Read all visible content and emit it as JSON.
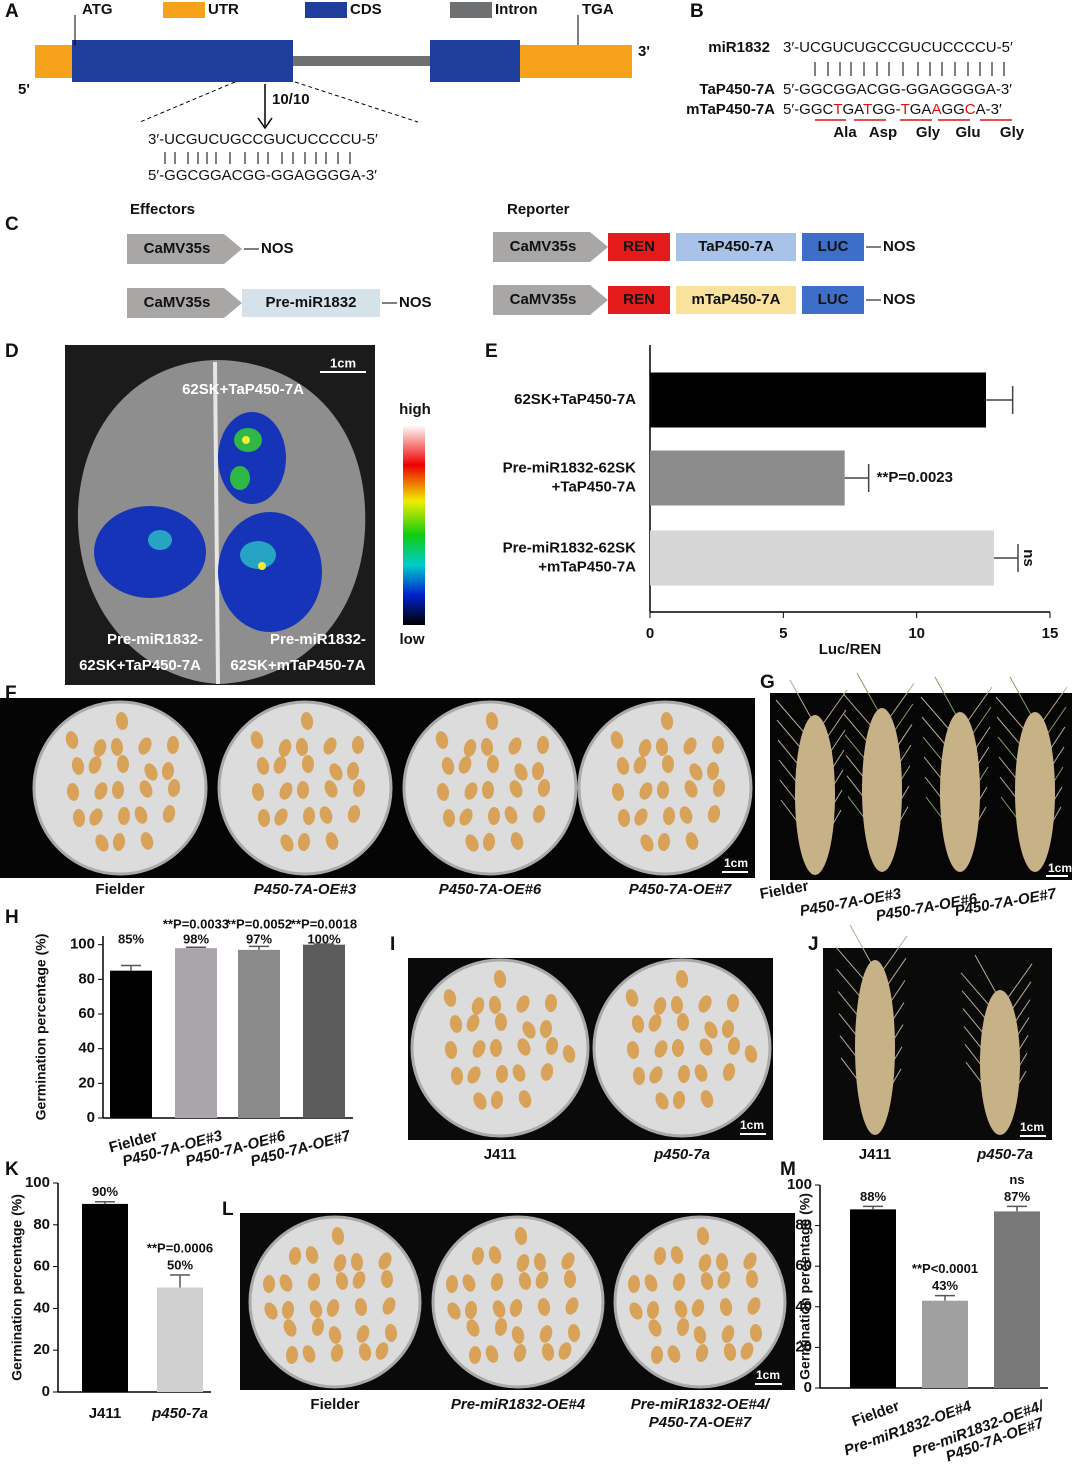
{
  "panel_labels": [
    "A",
    "B",
    "C",
    "D",
    "E",
    "F",
    "G",
    "H",
    "I",
    "J",
    "K",
    "L",
    "M"
  ],
  "gene_structure": {
    "legend": [
      "UTR",
      "CDS",
      "Intron"
    ],
    "start": "ATG",
    "stop": "TGA",
    "end5": "5'",
    "end3": "3'",
    "cleavage": "10/10",
    "mirna_seq": "3′-UCGUCUGCCGUCUCCCCU-5′",
    "target_seq": "5′-GGCGGACGG-GGAGGGGA-3′"
  },
  "alignment": {
    "names": [
      "miR1832",
      "TaP450-7A",
      "mTaP450-7A"
    ],
    "mirna_seq": "3′-UCGUCUGCCGUCUCCCCU-5′",
    "target_seq": "5′-GGCGGACGG-GGAGGGGA-3′",
    "mutant_segments": [
      "5′-GGC",
      "T",
      "GA",
      "T",
      "GG-",
      "T",
      "GA",
      "A",
      "GG",
      "C",
      "A-3′"
    ],
    "amino_acids": [
      "Ala",
      "Asp",
      "Gly",
      "Glu",
      "Gly"
    ]
  },
  "constructs": {
    "effectors_title": "Effectors",
    "reporter_title": "Reporter",
    "effectors": [
      [
        "CaMV35s",
        "NOS"
      ],
      [
        "CaMV35s",
        "Pre-miR1832",
        "NOS"
      ]
    ],
    "reporters": [
      [
        "CaMV35s",
        "REN",
        "TaP450-7A",
        "LUC",
        "NOS"
      ],
      [
        "CaMV35s",
        "REN",
        "mTaP450-7A",
        "LUC",
        "NOS"
      ]
    ]
  },
  "leaf_image": {
    "scale": "1cm",
    "labels": [
      [
        "62SK+TaP450-7A"
      ],
      [
        "Pre-miR1832-",
        "62SK+TaP450-7A"
      ],
      [
        "Pre-miR1832-",
        "62SK+mTaP450-7A"
      ]
    ],
    "colorbar": [
      "high",
      "low"
    ]
  },
  "plates_f": {
    "scale": "1cm",
    "labels": [
      "Fielder",
      "P450-7A-OE#3",
      "P450-7A-OE#6",
      "P450-7A-OE#7"
    ]
  },
  "spikes_g": {
    "scale": "1cm",
    "labels": [
      "Fielder",
      "P450-7A-OE#3",
      "P450-7A-OE#6",
      "P450-7A-OE#7"
    ]
  },
  "plates_i": {
    "scale": "1cm",
    "labels": [
      "J411",
      "p450-7a"
    ]
  },
  "spikes_j": {
    "scale": "1cm",
    "labels": [
      "J411",
      "p450-7a"
    ]
  },
  "plates_l": {
    "scale": "1cm",
    "labels": [
      [
        "Fielder"
      ],
      [
        "Pre-miR1832-OE#4"
      ],
      [
        "Pre-miR1832-OE#4/",
        "P450-7A-OE#7"
      ]
    ]
  },
  "chart_data": [
    {
      "type": "bar",
      "orientation": "horizontal",
      "categories": [
        [
          "62SK+TaP450-7A"
        ],
        [
          "Pre-miR1832-62SK",
          "+TaP450-7A"
        ],
        [
          "Pre-miR1832-62SK",
          "+mTaP450-7A"
        ]
      ],
      "values": [
        12.6,
        7.3,
        12.9
      ],
      "errors": [
        1.0,
        0.9,
        0.9
      ],
      "colors": [
        "#000000",
        "#8c8c8c",
        "#d6d6d6"
      ],
      "annotations": [
        null,
        "**P=0.0023",
        "ns"
      ],
      "xlabel": "Luc/REN",
      "xlim": [
        0,
        15
      ],
      "xticks": [
        0,
        5,
        10,
        15
      ]
    },
    {
      "type": "bar",
      "orientation": "vertical",
      "categories": [
        [
          "Fielder"
        ],
        [
          "P450-7A-OE#3"
        ],
        [
          "P450-7A-OE#6"
        ],
        [
          "P450-7A-OE#7"
        ]
      ],
      "values": [
        85,
        98,
        97,
        100
      ],
      "value_labels": [
        "85%",
        "98%",
        "97%",
        "100%"
      ],
      "errors": [
        3,
        0.5,
        2,
        0.3
      ],
      "colors": [
        "#000000",
        "#aaa5aa",
        "#8a8a8a",
        "#5c5c5c"
      ],
      "annotations": [
        null,
        "**P=0.0033",
        "**P=0.0052",
        "**P=0.0018"
      ],
      "ylabel": "Germination percentage (%)",
      "ylim": [
        0,
        105
      ],
      "yticks": [
        0,
        20,
        40,
        60,
        80,
        100
      ]
    },
    {
      "type": "bar",
      "orientation": "vertical",
      "categories": [
        [
          "J411"
        ],
        [
          "p450-7a"
        ]
      ],
      "values": [
        90,
        50
      ],
      "value_labels": [
        "90%",
        "50%"
      ],
      "errors": [
        1,
        6
      ],
      "colors": [
        "#000000",
        "#d0d0d0"
      ],
      "annotations": [
        null,
        "**P=0.0006"
      ],
      "ylabel": "Germination percentage (%)",
      "ylim": [
        0,
        100
      ],
      "yticks": [
        0,
        20,
        40,
        60,
        80,
        100
      ]
    },
    {
      "type": "bar",
      "orientation": "vertical",
      "categories": [
        [
          "Fielder"
        ],
        [
          "Pre-miR1832-OE#4"
        ],
        [
          "Pre-miR1832-OE#4/",
          "P450-7A-OE#7"
        ]
      ],
      "values": [
        88,
        43,
        87
      ],
      "value_labels": [
        "88%",
        "43%",
        "87%"
      ],
      "errors": [
        1.5,
        2.5,
        2.5
      ],
      "colors": [
        "#000000",
        "#a0a0a0",
        "#787878"
      ],
      "annotations": [
        null,
        "**P<0.0001",
        "ns"
      ],
      "ylabel": "Germination percentage (%)",
      "ylim": [
        0,
        100
      ],
      "yticks": [
        0,
        20,
        40,
        60,
        80,
        100
      ]
    }
  ]
}
